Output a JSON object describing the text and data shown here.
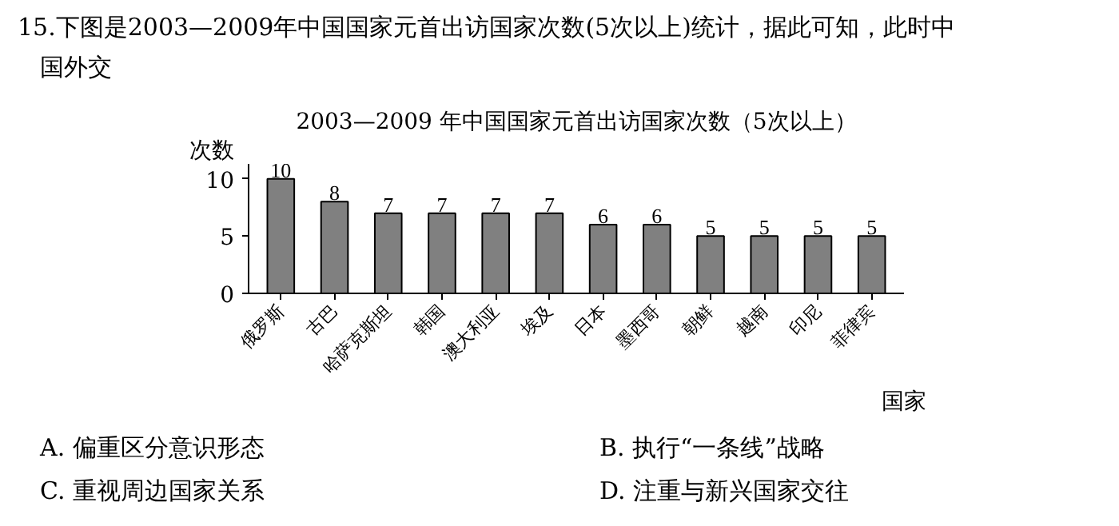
{
  "chart_data": {
    "type": "bar",
    "title": "2003—2009 年中国国家元首出访国家次数（5次以上）",
    "ylabel": "次数",
    "xlabel": "国家",
    "categories": [
      "俄罗斯",
      "古巴",
      "哈萨克斯坦",
      "韩国",
      "澳大利亚",
      "埃及",
      "日本",
      "墨西哥",
      "朝鲜",
      "越南",
      "印尼",
      "菲律宾"
    ],
    "values": [
      10,
      8,
      7,
      7,
      7,
      7,
      6,
      6,
      5,
      5,
      5,
      5
    ],
    "color": "#808080",
    "data_labels": true,
    "ylim": [
      0,
      11.3
    ],
    "yticks": [
      0,
      5,
      10
    ],
    "grid": false,
    "annotations": [
      "15.下图是2003—2009年中国国家元首出访国家次数(5次以上)统计，据此可知，此时中国外交",
      "A. 偏重区分意识形态",
      "B. 执行“一条线”战略",
      "C. 重视周边国家关系",
      "D. 注重与新兴国家交往"
    ]
  }
}
